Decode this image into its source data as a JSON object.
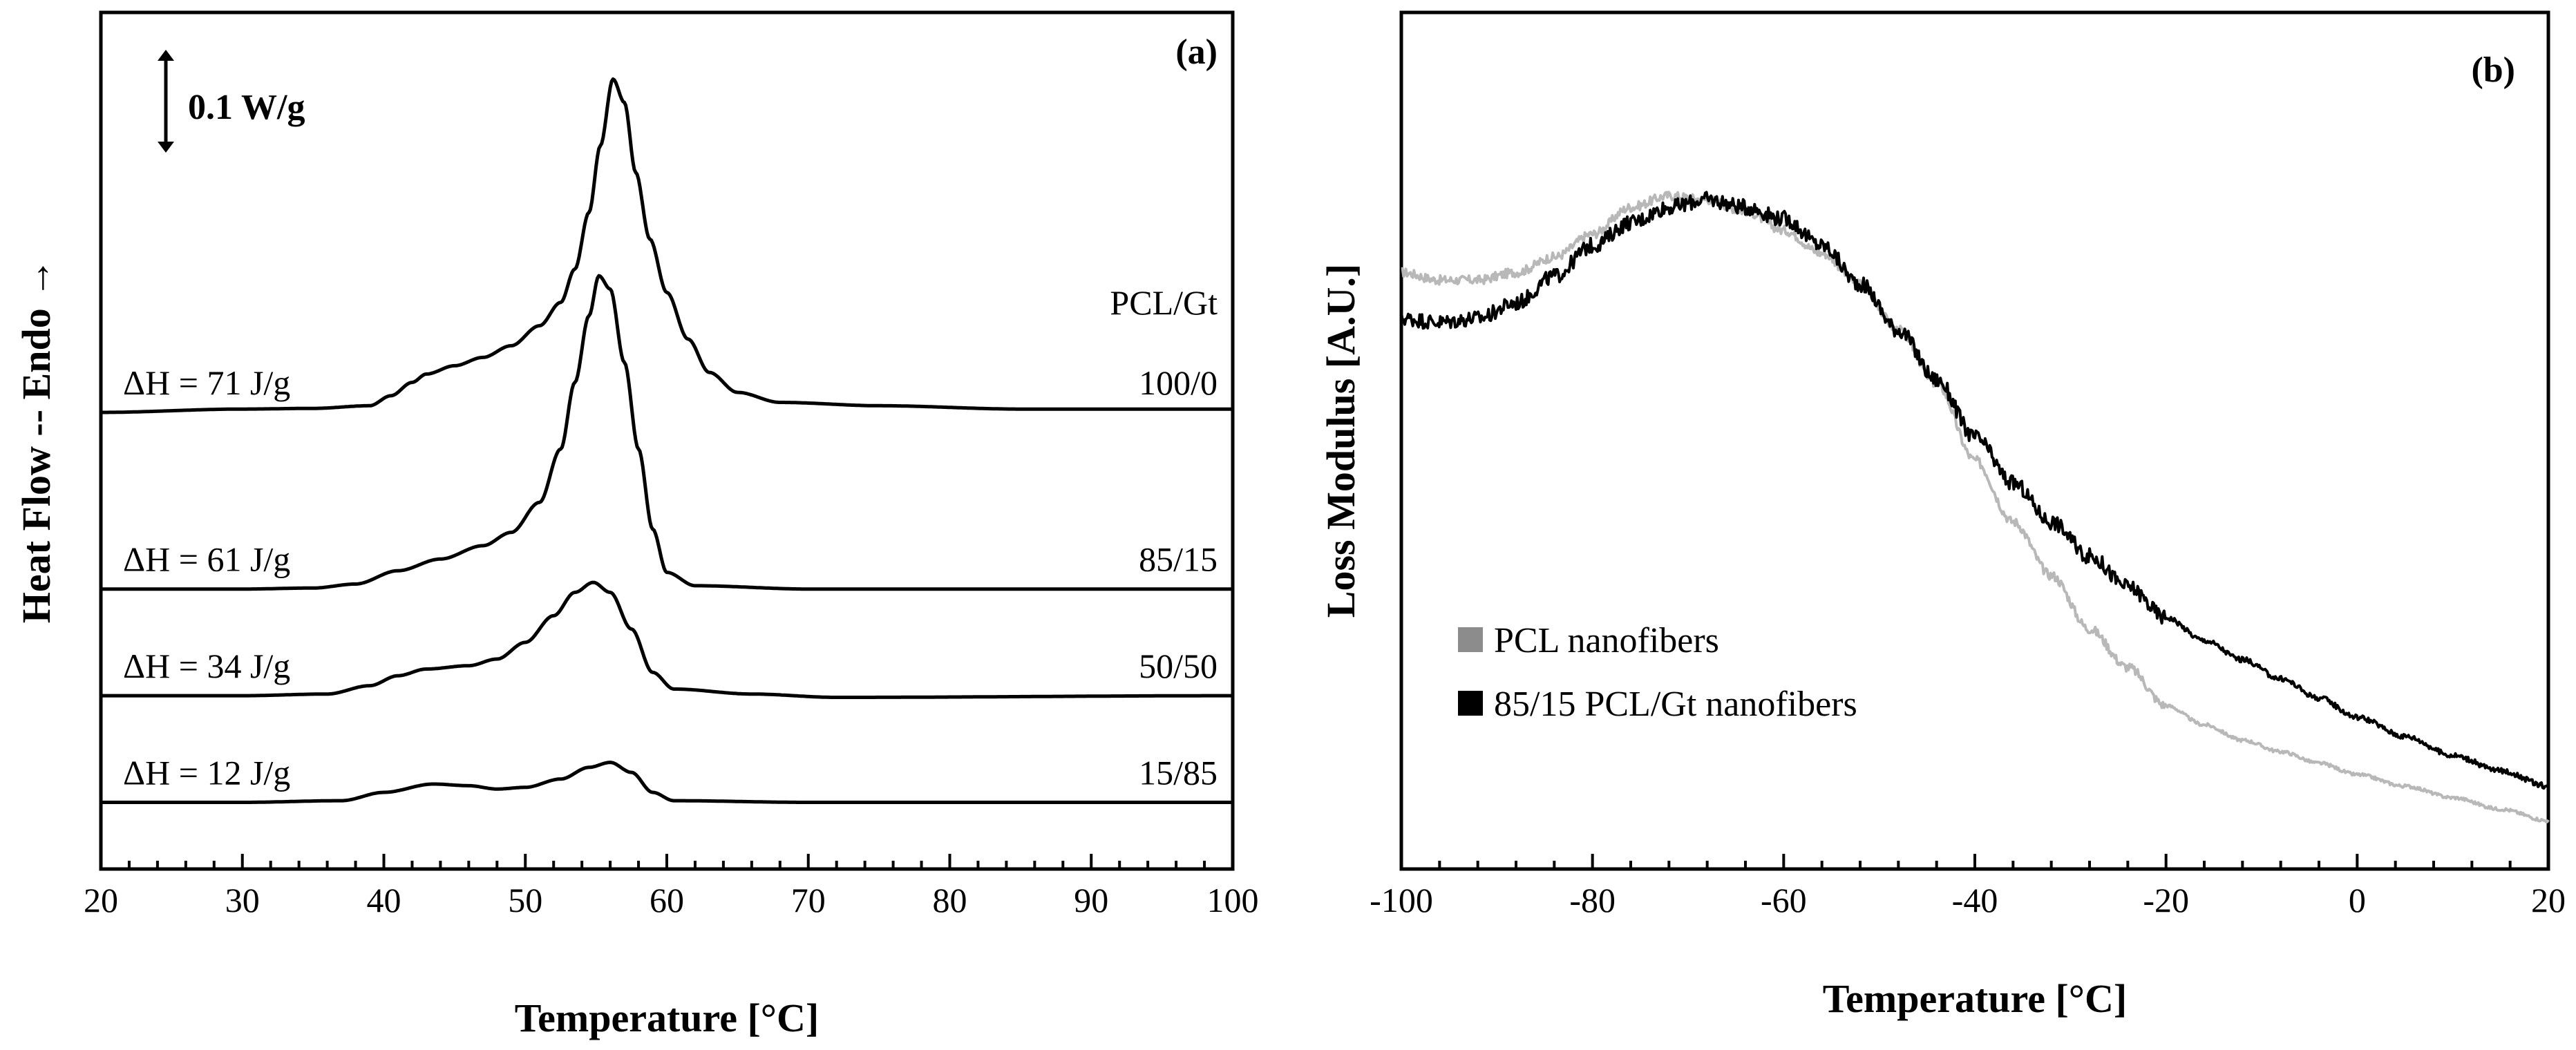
{
  "chart_data": [
    {
      "type": "line",
      "panel": "(a)",
      "title": "",
      "xlabel": "Temperature [°C]",
      "ylabel": "Heat Flow -- Endo →",
      "xlim": [
        20,
        100
      ],
      "x_ticks": [
        20,
        30,
        40,
        50,
        60,
        70,
        80,
        90,
        100
      ],
      "y_ticks": [],
      "scale_bar_label": "0.1 W/g",
      "legend_header": "PCL/Gt",
      "series": [
        {
          "name": "100/0",
          "dh_label": "ΔH = 71 J/g",
          "offset": 1.25,
          "curve": [
            [
              20,
              0
            ],
            [
              30,
              0.01
            ],
            [
              35,
              0.012
            ],
            [
              39,
              0.02
            ],
            [
              40.5,
              0.05
            ],
            [
              42,
              0.09
            ],
            [
              43,
              0.115
            ],
            [
              45,
              0.14
            ],
            [
              47,
              0.165
            ],
            [
              49,
              0.2
            ],
            [
              51,
              0.26
            ],
            [
              52.5,
              0.33
            ],
            [
              53.5,
              0.43
            ],
            [
              54.5,
              0.6
            ],
            [
              55.3,
              0.8
            ],
            [
              56.2,
              1.0
            ],
            [
              57,
              0.93
            ],
            [
              57.8,
              0.72
            ],
            [
              58.8,
              0.52
            ],
            [
              60,
              0.36
            ],
            [
              61.5,
              0.22
            ],
            [
              63,
              0.12
            ],
            [
              65,
              0.06
            ],
            [
              68,
              0.03
            ],
            [
              75,
              0.02
            ],
            [
              85,
              0.01
            ],
            [
              100,
              0.01
            ]
          ]
        },
        {
          "name": "85/15",
          "dh_label": "ΔH = 61 J/g",
          "offset": 0.72,
          "curve": [
            [
              20,
              0
            ],
            [
              30,
              0
            ],
            [
              35,
              0.003
            ],
            [
              38,
              0.015
            ],
            [
              41,
              0.055
            ],
            [
              44,
              0.09
            ],
            [
              47,
              0.13
            ],
            [
              49,
              0.17
            ],
            [
              51,
              0.26
            ],
            [
              52.5,
              0.42
            ],
            [
              53.5,
              0.62
            ],
            [
              54.5,
              0.82
            ],
            [
              55.2,
              0.94
            ],
            [
              56,
              0.9
            ],
            [
              57,
              0.68
            ],
            [
              58,
              0.42
            ],
            [
              59,
              0.18
            ],
            [
              60,
              0.05
            ],
            [
              62,
              0.01
            ],
            [
              70,
              0
            ],
            [
              100,
              0
            ]
          ]
        },
        {
          "name": "50/50",
          "dh_label": "ΔH = 34 J/g",
          "offset": 0.4,
          "curve": [
            [
              20,
              0
            ],
            [
              30,
              0
            ],
            [
              36,
              0.005
            ],
            [
              39,
              0.03
            ],
            [
              41,
              0.06
            ],
            [
              43,
              0.08
            ],
            [
              46,
              0.09
            ],
            [
              48,
              0.11
            ],
            [
              50,
              0.16
            ],
            [
              52,
              0.24
            ],
            [
              53.5,
              0.31
            ],
            [
              54.8,
              0.34
            ],
            [
              56,
              0.31
            ],
            [
              57.5,
              0.2
            ],
            [
              59,
              0.07
            ],
            [
              60.5,
              0.02
            ],
            [
              66,
              0.005
            ],
            [
              72,
              -0.005
            ],
            [
              100,
              0
            ]
          ]
        },
        {
          "name": "15/85",
          "dh_label": "ΔH = 12 J/g",
          "offset": 0.08,
          "curve": [
            [
              20,
              0
            ],
            [
              30,
              0
            ],
            [
              37,
              0.005
            ],
            [
              40,
              0.03
            ],
            [
              43.5,
              0.055
            ],
            [
              46,
              0.05
            ],
            [
              48,
              0.04
            ],
            [
              50,
              0.045
            ],
            [
              52.5,
              0.07
            ],
            [
              54.5,
              0.105
            ],
            [
              56,
              0.12
            ],
            [
              57.5,
              0.09
            ],
            [
              59,
              0.03
            ],
            [
              60.5,
              0.005
            ],
            [
              70,
              0
            ],
            [
              100,
              0
            ]
          ]
        }
      ]
    },
    {
      "type": "line",
      "panel": "(b)",
      "title": "",
      "xlabel": "Temperature [°C]",
      "ylabel": "Loss Modulus [A.U.]",
      "xlim": [
        -100,
        20
      ],
      "ylim": [
        0,
        1
      ],
      "x_ticks": [
        -100,
        -80,
        -60,
        -40,
        -20,
        0,
        20
      ],
      "y_ticks": [],
      "legend": [
        "PCL nanofibers",
        "85/15 PCL/Gt nanofibers"
      ],
      "series": [
        {
          "name": "PCL nanofibers",
          "color": "#b8b8b8",
          "noise": 0.006,
          "curve": [
            [
              -100,
              0.715
            ],
            [
              -96,
              0.705
            ],
            [
              -92,
              0.705
            ],
            [
              -88,
              0.715
            ],
            [
              -84,
              0.735
            ],
            [
              -80,
              0.765
            ],
            [
              -76,
              0.8
            ],
            [
              -72,
              0.815
            ],
            [
              -68,
              0.81
            ],
            [
              -64,
              0.795
            ],
            [
              -60,
              0.77
            ],
            [
              -56,
              0.74
            ],
            [
              -52,
              0.7
            ],
            [
              -48,
              0.64
            ],
            [
              -44,
              0.57
            ],
            [
              -40,
              0.47
            ],
            [
              -36,
              0.39
            ],
            [
              -32,
              0.32
            ],
            [
              -28,
              0.25
            ],
            [
              -24,
              0.2
            ],
            [
              -20,
              0.15
            ],
            [
              -16,
              0.125
            ],
            [
              -12,
              0.105
            ],
            [
              -8,
              0.09
            ],
            [
              -4,
              0.075
            ],
            [
              0,
              0.06
            ],
            [
              5,
              0.045
            ],
            [
              10,
              0.03
            ],
            [
              15,
              0.015
            ],
            [
              20,
              0.0
            ]
          ]
        },
        {
          "name": "85/15 PCL/Gt nanofibers",
          "color": "#000000",
          "noise": 0.01,
          "curve": [
            [
              -100,
              0.655
            ],
            [
              -96,
              0.65
            ],
            [
              -92,
              0.655
            ],
            [
              -88,
              0.675
            ],
            [
              -84,
              0.71
            ],
            [
              -80,
              0.75
            ],
            [
              -76,
              0.78
            ],
            [
              -72,
              0.8
            ],
            [
              -68,
              0.81
            ],
            [
              -64,
              0.8
            ],
            [
              -60,
              0.785
            ],
            [
              -56,
              0.75
            ],
            [
              -52,
              0.7
            ],
            [
              -48,
              0.64
            ],
            [
              -44,
              0.575
            ],
            [
              -40,
              0.5
            ],
            [
              -36,
              0.44
            ],
            [
              -32,
              0.39
            ],
            [
              -28,
              0.345
            ],
            [
              -24,
              0.305
            ],
            [
              -20,
              0.265
            ],
            [
              -16,
              0.235
            ],
            [
              -12,
              0.21
            ],
            [
              -8,
              0.185
            ],
            [
              -4,
              0.16
            ],
            [
              0,
              0.135
            ],
            [
              5,
              0.11
            ],
            [
              10,
              0.085
            ],
            [
              15,
              0.065
            ],
            [
              20,
              0.045
            ]
          ]
        }
      ]
    }
  ]
}
